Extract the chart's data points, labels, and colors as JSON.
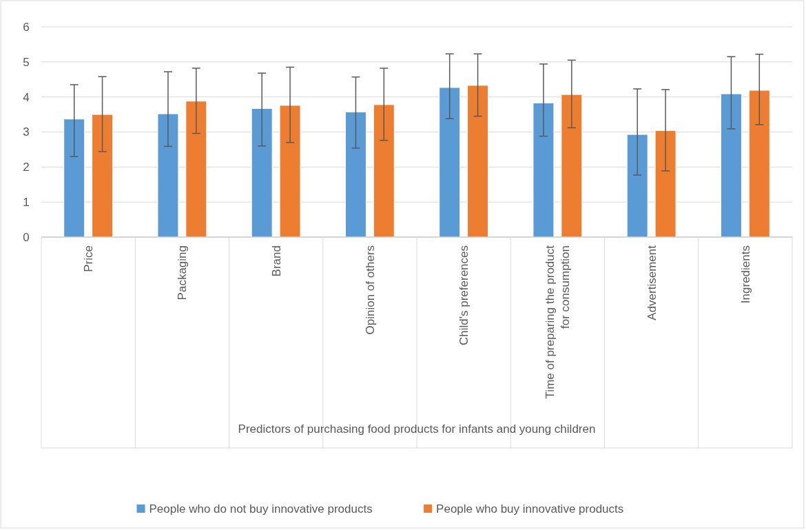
{
  "chart_data": {
    "type": "bar",
    "xlabel": "Predictors of purchasing food products for infants and young children",
    "categories": [
      "Price",
      "Packaging",
      "Brand",
      "Opinion of others",
      "Child's preferences",
      "Time of preparing the product for consumption",
      "Advertisement",
      "Ingredients"
    ],
    "series": [
      {
        "name": "People who do not buy innovative products",
        "color": "#5b9bd5",
        "values": [
          3.37,
          3.52,
          3.67,
          3.57,
          4.27,
          3.83,
          2.93,
          4.09
        ],
        "errors": [
          [
            2.3,
            4.35
          ],
          [
            2.59,
            4.72
          ],
          [
            2.6,
            4.68
          ],
          [
            2.54,
            4.57
          ],
          [
            3.38,
            5.23
          ],
          [
            2.88,
            4.94
          ],
          [
            1.77,
            4.23
          ],
          [
            3.09,
            5.15
          ]
        ]
      },
      {
        "name": "People who buy innovative products",
        "color": "#ed7d31",
        "values": [
          3.5,
          3.88,
          3.76,
          3.78,
          4.33,
          4.07,
          3.04,
          4.19
        ],
        "errors": [
          [
            2.44,
            4.58
          ],
          [
            2.96,
            4.82
          ],
          [
            2.7,
            4.85
          ],
          [
            2.76,
            4.82
          ],
          [
            3.45,
            5.23
          ],
          [
            3.12,
            5.05
          ],
          [
            1.89,
            4.21
          ],
          [
            3.21,
            5.22
          ]
        ]
      }
    ],
    "ylim": [
      0,
      6
    ],
    "yticks": [
      0,
      1,
      2,
      3,
      4,
      5,
      6
    ],
    "grid": "y",
    "legend": "bottom"
  }
}
